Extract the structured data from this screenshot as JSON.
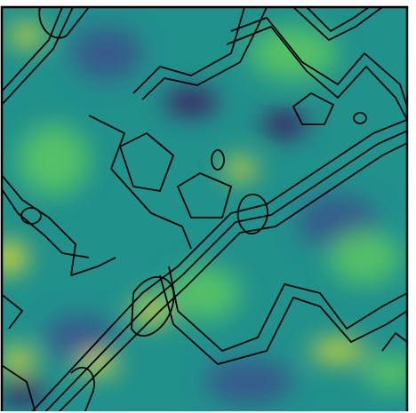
{
  "chart_data": {
    "type": "contour",
    "colors": [
      "#440154",
      "#3b528b",
      "#21918c",
      "#5ec962",
      "#fde725"
    ]
  }
}
